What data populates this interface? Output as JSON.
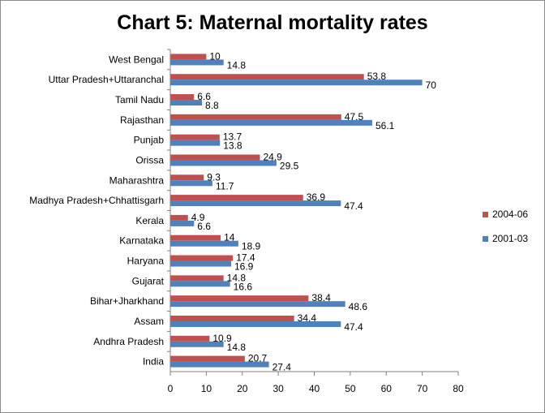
{
  "chart_data": {
    "type": "bar",
    "orientation": "horizontal",
    "title": "Chart 5: Maternal mortality rates",
    "categories": [
      "India",
      "Andhra Pradesh",
      "Assam",
      "Bihar+Jharkhand",
      "Gujarat",
      "Haryana",
      "Karnataka",
      "Kerala",
      "Madhya Pradesh+Chhattisgarh",
      "Maharashtra",
      "Orissa",
      "Punjab",
      "Rajasthan",
      "Tamil Nadu",
      "Uttar Pradesh+Uttaranchal",
      "West Bengal"
    ],
    "series": [
      {
        "name": "2004-06",
        "color": "#c0504d",
        "values": [
          20.7,
          10.9,
          34.4,
          38.4,
          14.8,
          17.4,
          14,
          4.9,
          36.9,
          9.3,
          24.9,
          13.7,
          47.5,
          6.6,
          53.8,
          10
        ]
      },
      {
        "name": "2001-03",
        "color": "#4f81bd",
        "values": [
          27.4,
          14.8,
          47.4,
          48.6,
          16.6,
          16.9,
          18.9,
          6.6,
          47.4,
          11.7,
          29.5,
          13.8,
          56.1,
          8.8,
          70,
          14.8
        ]
      }
    ],
    "xlim": [
      0,
      80
    ],
    "xticks": [
      0,
      10,
      20,
      30,
      40,
      50,
      60,
      70,
      80
    ],
    "grid": false,
    "legend_position": "right"
  }
}
